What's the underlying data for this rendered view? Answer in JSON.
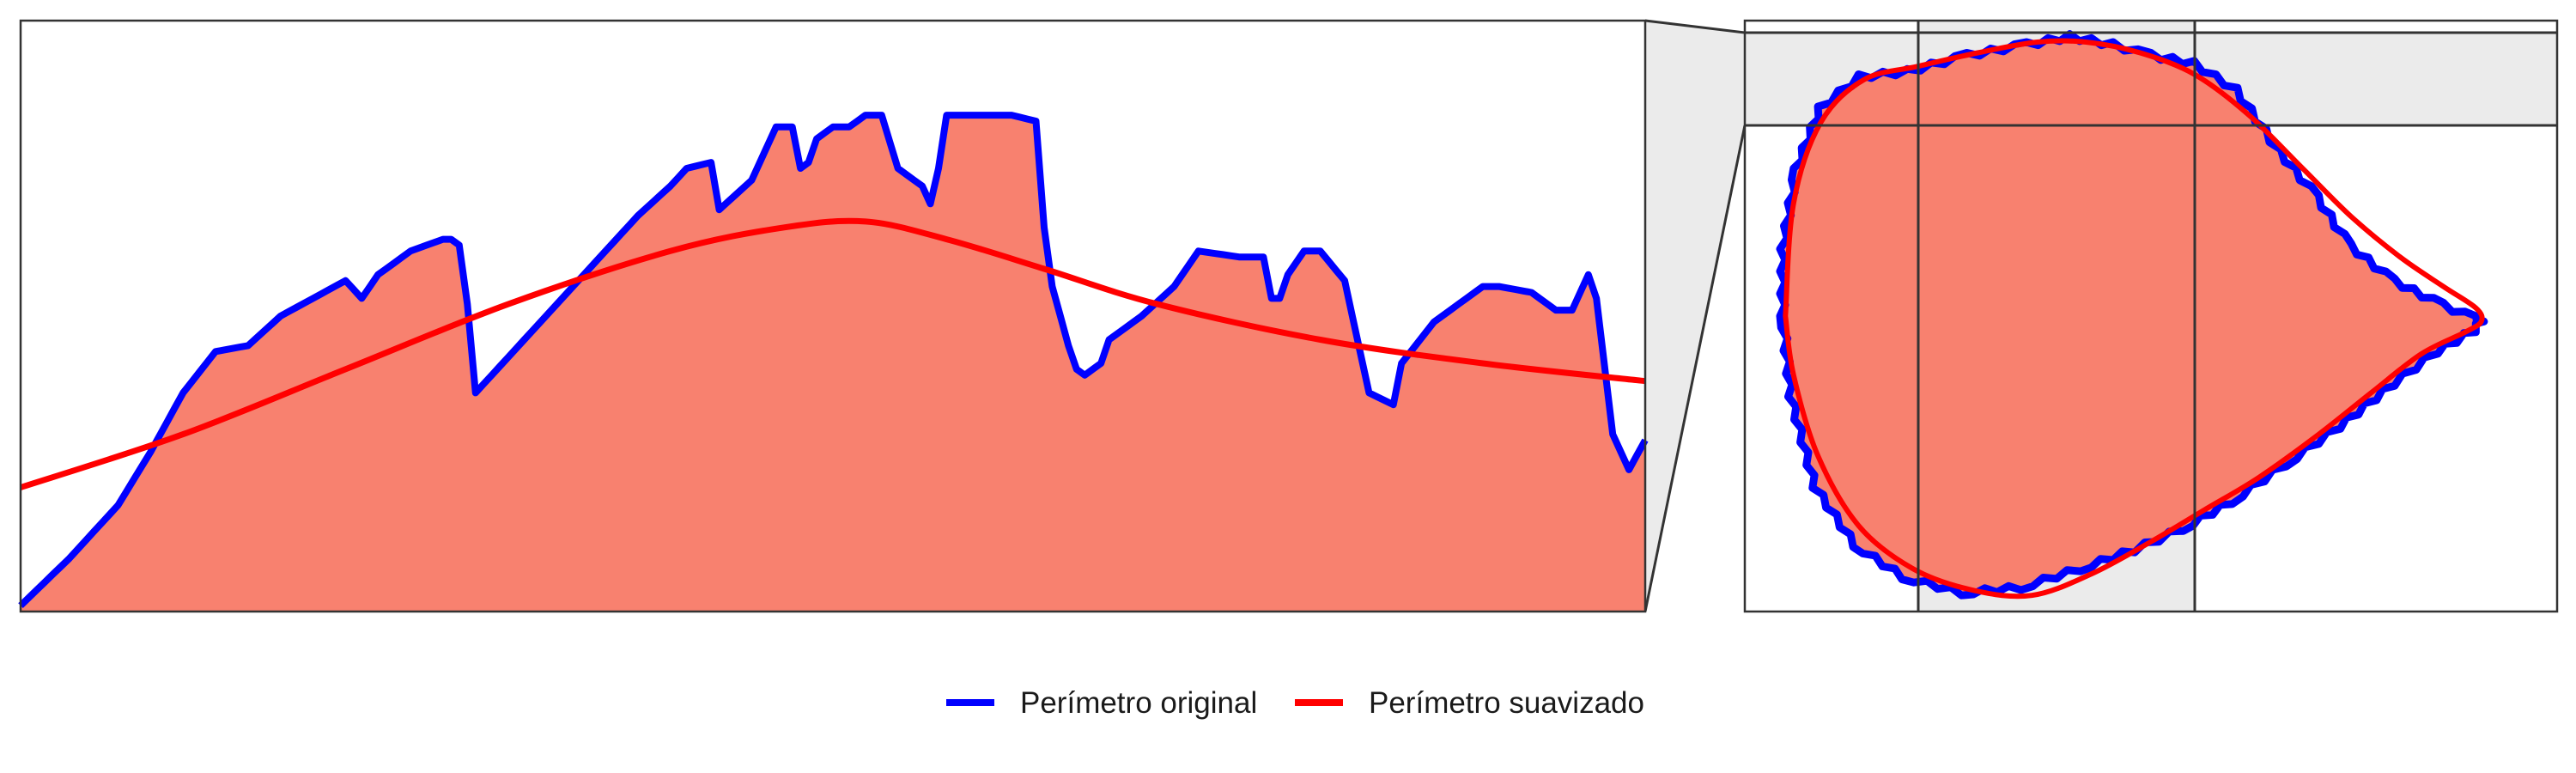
{
  "colors": {
    "fill": "#F8816F",
    "original": "#0000FF",
    "smoothed": "#FF0000",
    "frame": "#333333",
    "shade": "#EBEBEB"
  },
  "legend": {
    "items": [
      {
        "label": "Perímetro original",
        "color": "#0000FF"
      },
      {
        "label": "Perímetro suavizado",
        "color": "#FF0000"
      }
    ]
  },
  "chart_data": [
    {
      "type": "area",
      "title": "",
      "xlabel": "",
      "ylabel": "",
      "xlim": [
        0,
        100
      ],
      "ylim": [
        0,
        100
      ],
      "grid": false,
      "legend_position": "bottom-center",
      "series": [
        {
          "name": "Perímetro original",
          "x": [
            0,
            3,
            6,
            8,
            10,
            12,
            14,
            16,
            18,
            20,
            21,
            22,
            24,
            25,
            26,
            26.5,
            27,
            27.5,
            28,
            29,
            30,
            31,
            32,
            34,
            36,
            38,
            40,
            41,
            42.5,
            43,
            45,
            46.5,
            47.5,
            48,
            48.5,
            49,
            50,
            51,
            52,
            53,
            54,
            55.5,
            56,
            56.5,
            57,
            59,
            61,
            62.5,
            63,
            63.5,
            64.5,
            65,
            65.5,
            66.5,
            67,
            69,
            71,
            72.5,
            75,
            76.5,
            77,
            77.5,
            78,
            79,
            80,
            81.5,
            83,
            84.5,
            85,
            87,
            89,
            90,
            91,
            93,
            94.5,
            95.5,
            96.5,
            97,
            98,
            99,
            100
          ],
          "y": [
            1,
            9,
            18,
            27,
            37,
            44,
            45,
            50,
            53,
            56,
            53,
            57,
            61,
            62,
            63,
            63,
            62,
            52,
            37,
            40,
            43,
            46,
            49,
            55,
            61,
            67,
            72,
            75,
            76,
            68,
            73,
            82,
            82,
            75,
            76,
            80,
            82,
            82,
            84,
            84,
            75,
            72,
            69,
            75,
            84,
            84,
            84,
            83,
            65,
            55,
            45,
            41,
            40,
            42,
            46,
            50,
            55,
            61,
            60,
            60,
            53,
            53,
            57,
            61,
            61,
            56,
            37,
            35,
            42,
            49,
            53,
            55,
            55,
            54,
            51,
            51,
            57,
            53,
            30,
            24,
            29
          ]
        },
        {
          "name": "Perímetro suavizado",
          "x": [
            0,
            10,
            20,
            30,
            40,
            47,
            52,
            57,
            63,
            70,
            80,
            90,
            100
          ],
          "y": [
            21,
            30,
            41,
            52,
            61,
            65,
            66,
            63,
            58,
            52,
            46,
            42,
            39
          ]
        }
      ]
    },
    {
      "type": "scatter",
      "title": "",
      "xlabel": "",
      "ylabel": "",
      "xlim": [
        -1.2,
        1.8
      ],
      "ylim": [
        -1.1,
        1.1
      ],
      "grid": false,
      "series": [
        {
          "name": "Perímetro original",
          "x": [
            -1.07,
            -1.02,
            -0.93,
            -0.78,
            -0.6,
            -0.38,
            -0.16,
            0,
            0.16,
            0.3,
            0.46,
            0.62,
            0.78,
            0.92,
            1.04,
            1.2,
            1.38,
            1.5,
            1.53,
            1.5,
            1.36,
            1.2,
            1.0,
            0.8,
            0.6,
            0.42,
            0.24,
            0.04,
            -0.18,
            -0.4,
            -0.62,
            -0.8,
            -0.95,
            -1.04,
            -1.07
          ],
          "y": [
            0.25,
            0.55,
            0.78,
            0.9,
            0.92,
            0.98,
            1.02,
            1.05,
            1.02,
            0.98,
            0.95,
            0.85,
            0.62,
            0.45,
            0.27,
            0.14,
            0.05,
            0.0,
            -0.02,
            -0.06,
            -0.14,
            -0.26,
            -0.42,
            -0.56,
            -0.7,
            -0.8,
            -0.88,
            -0.95,
            -1.02,
            -1.04,
            -0.98,
            -0.86,
            -0.64,
            -0.3,
            0.0
          ]
        },
        {
          "name": "Perímetro suavizado",
          "x": [
            -1.05,
            -1.02,
            -0.92,
            -0.76,
            -0.56,
            -0.34,
            -0.12,
            0.06,
            0.26,
            0.46,
            0.66,
            0.86,
            1.04,
            1.22,
            1.38,
            1.5,
            1.52,
            1.46,
            1.3,
            1.12,
            0.92,
            0.7,
            0.5,
            0.3,
            0.08,
            -0.14,
            -0.36,
            -0.58,
            -0.78,
            -0.93,
            -1.02,
            -1.05
          ],
          "y": [
            0.0,
            0.42,
            0.72,
            0.88,
            0.93,
            0.98,
            1.02,
            1.02,
            0.98,
            0.9,
            0.75,
            0.55,
            0.37,
            0.22,
            0.11,
            0.03,
            -0.02,
            -0.06,
            -0.14,
            -0.28,
            -0.44,
            -0.6,
            -0.72,
            -0.84,
            -0.96,
            -1.04,
            -1.02,
            -0.94,
            -0.78,
            -0.52,
            -0.22,
            0.0
          ]
        }
      ]
    }
  ]
}
